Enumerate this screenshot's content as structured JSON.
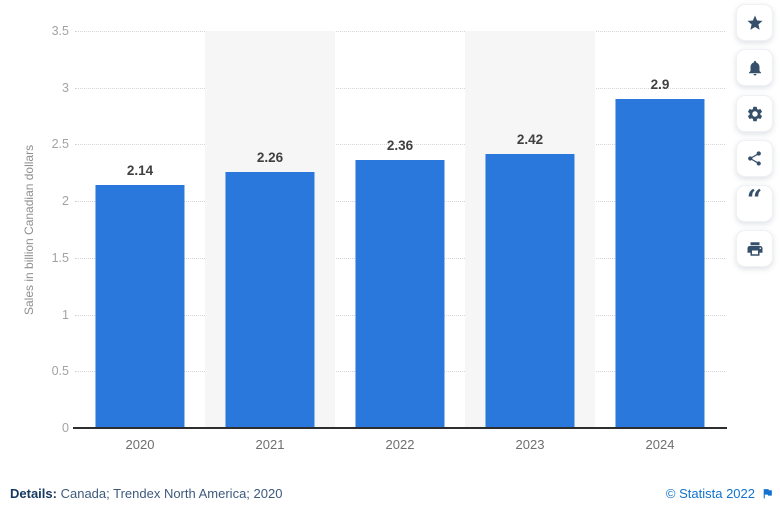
{
  "chart_data": {
    "type": "bar",
    "title": "",
    "categories": [
      "2020",
      "2021",
      "2022",
      "2023",
      "2024"
    ],
    "values": [
      2.14,
      2.26,
      2.36,
      2.42,
      2.9
    ],
    "value_labels": [
      "2.14",
      "2.26",
      "2.36",
      "2.42",
      "2.9"
    ],
    "xlabel": "",
    "ylabel": "Sales in billion Canadian dollars",
    "ylim": [
      0,
      3.5
    ],
    "yticks": [
      0,
      0.5,
      1,
      1.5,
      2,
      2.5,
      3,
      3.5
    ],
    "ytick_labels": [
      "0",
      "0.5",
      "1",
      "1.5",
      "2",
      "2.5",
      "3",
      "3.5"
    ],
    "grid": "horizontal-dotted",
    "legend": "none",
    "bar_color": "#2a78dc",
    "band_color": "#f6f6f6",
    "shaded_columns": [
      1,
      3
    ]
  },
  "footer": {
    "details_label": "Details:",
    "details_value": "Canada; Trendex North America; 2020",
    "credit": "© Statista 2022",
    "flag_icon": "report-flag-icon"
  },
  "toolbar": {
    "buttons": [
      {
        "label": "favorite",
        "icon": "star-icon"
      },
      {
        "label": "notifications",
        "icon": "bell-icon"
      },
      {
        "label": "settings",
        "icon": "gear-icon"
      },
      {
        "label": "share",
        "icon": "share-icon"
      },
      {
        "label": "cite",
        "icon": "quote-icon"
      },
      {
        "label": "print",
        "icon": "printer-icon"
      }
    ]
  },
  "colors": {
    "bar": "#2a78dc",
    "column_band": "#f6f6f6",
    "axis": "#2e2e2e",
    "gridline": "#d5d5d5",
    "ytick_text": "#a3a3a3",
    "xtick_text": "#6f6f6f",
    "value_text": "#404040",
    "icon": "#36506c",
    "details_text": "#3d5a7d",
    "details_label_text": "#16395f",
    "credit_link": "#1273cf"
  }
}
